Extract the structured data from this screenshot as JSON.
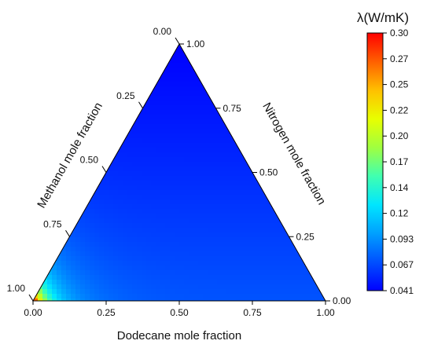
{
  "chart_data": {
    "type": "heatmap",
    "subtype": "ternary-contour",
    "axes": {
      "bottom": {
        "label": "Dodecane mole fraction",
        "ticks": [
          "0.00",
          "0.25",
          "0.50",
          "0.75",
          "1.00"
        ]
      },
      "right": {
        "label": "Nitrogen mole fraction",
        "ticks": [
          "0.00",
          "0.25",
          "0.50",
          "0.75",
          "1.00"
        ]
      },
      "left": {
        "label": "Methanol mole fraction",
        "ticks": [
          "1.00",
          "0.75",
          "0.50",
          "0.25",
          "0.00"
        ]
      }
    },
    "colorbar": {
      "title": "λ(W/mK)",
      "ticks": [
        "0.30",
        "0.27",
        "0.25",
        "0.22",
        "0.20",
        "0.17",
        "0.14",
        "0.12",
        "0.093",
        "0.067",
        "0.041"
      ],
      "min": 0.041,
      "max": 0.3,
      "colors": [
        "#0000ff",
        "#0050ff",
        "#00a0ff",
        "#00e6ff",
        "#40ffb0",
        "#a0ff40",
        "#e8ff00",
        "#ffc000",
        "#ff6000",
        "#ff0000"
      ]
    },
    "field": {
      "peak_corner": "Methanol = 1.00",
      "peak_value": 0.3,
      "low_corner": "Nitrogen = 1.00",
      "low_value": 0.041
    }
  }
}
